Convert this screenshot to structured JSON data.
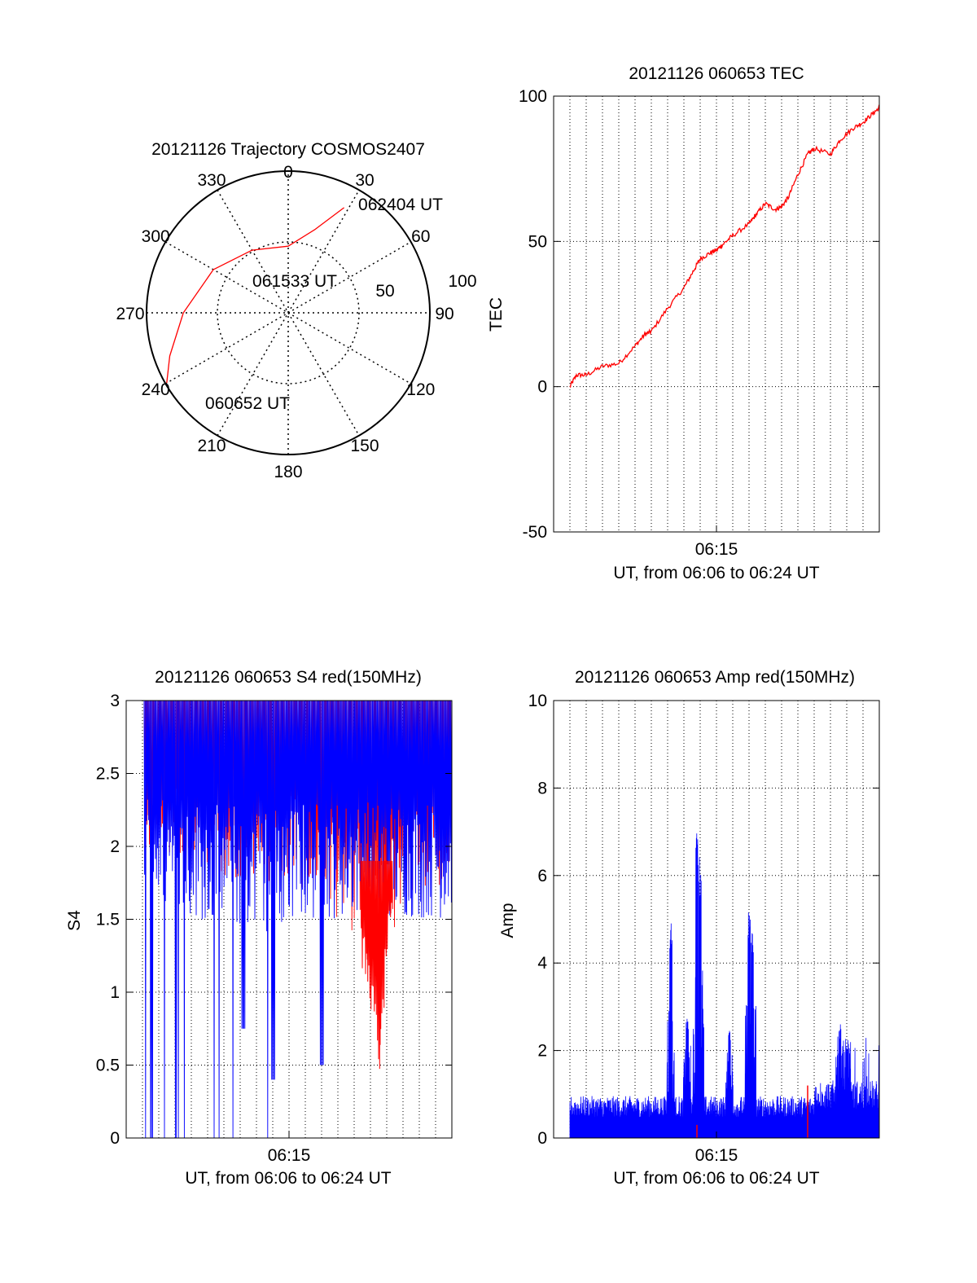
{
  "chart_data": [
    {
      "type": "polar",
      "title": "20121126 Trajectory COSMOS2407",
      "angle_labels": [
        "0",
        "30",
        "60",
        "90",
        "120",
        "150",
        "180",
        "210",
        "240",
        "270",
        "300",
        "330"
      ],
      "radius_labels": [
        "50",
        "100"
      ],
      "rlim": [
        0,
        100
      ],
      "grid": true,
      "series": [
        {
          "color": "#ff0000",
          "points": [
            {
              "azimuth": 28,
              "r": 84
            },
            {
              "azimuth": 18,
              "r": 62
            },
            {
              "azimuth": 0,
              "r": 47
            },
            {
              "azimuth": 330,
              "r": 51
            },
            {
              "azimuth": 300,
              "r": 61
            },
            {
              "azimuth": 270,
              "r": 74
            },
            {
              "azimuth": 250,
              "r": 89
            },
            {
              "azimuth": 240,
              "r": 99
            }
          ]
        }
      ],
      "annotations": [
        {
          "text": "062404 UT",
          "azimuth": 33,
          "r": 84
        },
        {
          "text": "061533 UT",
          "azimuth": 5,
          "r": 32
        },
        {
          "text": "060652 UT",
          "azimuth": 233,
          "r": 95
        }
      ]
    },
    {
      "type": "line",
      "title": "20121126 060653 TEC",
      "ylabel": "TEC",
      "xlabel": "UT, from 06:06 to 06:24 UT",
      "x_tick_labels": [
        "06:15"
      ],
      "y_tick_labels": [
        "-50",
        "0",
        "50",
        "100"
      ],
      "xlim": [
        0,
        1
      ],
      "ylim": [
        -50,
        100
      ],
      "grid": true,
      "series": [
        {
          "color": "#ff0000",
          "x": [
            0.05,
            0.07,
            0.1,
            0.15,
            0.2,
            0.25,
            0.28,
            0.3,
            0.35,
            0.4,
            0.43,
            0.45,
            0.48,
            0.5,
            0.52,
            0.55,
            0.6,
            0.62,
            0.65,
            0.68,
            0.7,
            0.72,
            0.75,
            0.78,
            0.8,
            0.85,
            0.88,
            0.92,
            0.95,
            0.98,
            1.0
          ],
          "y": [
            0,
            4,
            4,
            7,
            8,
            14,
            18,
            19,
            27,
            34,
            40,
            44,
            46,
            47,
            49,
            52,
            56,
            59,
            63,
            61,
            62,
            65,
            73,
            80,
            82,
            80,
            85,
            89,
            91,
            94,
            96
          ]
        }
      ]
    },
    {
      "type": "line",
      "title": "20121126 060653 S4 red(150MHz)",
      "ylabel": "S4",
      "xlabel": "UT, from 06:06 to 06:24 UT",
      "x_tick_labels": [
        "06:15"
      ],
      "y_tick_labels": [
        "0",
        "0.5",
        "1",
        "1.5",
        "2",
        "2.5",
        "3"
      ],
      "xlim": [
        0,
        1
      ],
      "ylim": [
        0,
        3
      ],
      "grid": true,
      "series": [
        {
          "color": "#ff0000",
          "kind": "dense-noise",
          "min_envelope": [
            [
              0.0,
              2.0
            ],
            [
              0.1,
              1.9
            ],
            [
              0.3,
              1.8
            ],
            [
              0.55,
              1.7
            ],
            [
              0.7,
              1.4
            ],
            [
              0.75,
              0.9
            ],
            [
              0.78,
              0.4
            ],
            [
              0.8,
              1.2
            ],
            [
              0.85,
              1.6
            ],
            [
              1.0,
              1.7
            ]
          ],
          "max": 3
        },
        {
          "color": "#0000ff",
          "kind": "dense-noise",
          "min_envelope": [
            [
              0.0,
              1.7
            ],
            [
              0.2,
              1.5
            ],
            [
              0.4,
              1.4
            ],
            [
              0.6,
              1.5
            ],
            [
              0.8,
              1.5
            ],
            [
              1.0,
              1.5
            ]
          ],
          "max": 3,
          "dropouts_to_zero_before": 0.5,
          "dips": [
            [
              0.36,
              0.75
            ],
            [
              0.45,
              0.4
            ],
            [
              0.6,
              0.5
            ]
          ]
        }
      ]
    },
    {
      "type": "bar",
      "title": "20121126 060653 Amp red(150MHz)",
      "ylabel": "Amp",
      "xlabel": "UT, from 06:06 to 06:24 UT",
      "x_tick_labels": [
        "06:15"
      ],
      "y_tick_labels": [
        "0",
        "2",
        "4",
        "6",
        "8",
        "10"
      ],
      "xlim": [
        0,
        1
      ],
      "ylim": [
        0,
        10
      ],
      "grid": true,
      "series": [
        {
          "color": "#0000ff",
          "kind": "dense-noise",
          "baseline": 0.8,
          "peaks": [
            [
              0.36,
              5.0
            ],
            [
              0.41,
              2.8
            ],
            [
              0.44,
              7.0
            ],
            [
              0.45,
              6.5
            ],
            [
              0.54,
              2.6
            ],
            [
              0.6,
              5.2
            ],
            [
              0.61,
              4.8
            ],
            [
              0.88,
              2.6
            ],
            [
              0.9,
              2.3
            ]
          ]
        },
        {
          "color": "#ff0000",
          "kind": "sparse",
          "points": [
            [
              0.44,
              0.3
            ],
            [
              0.78,
              1.2
            ]
          ]
        }
      ]
    }
  ]
}
